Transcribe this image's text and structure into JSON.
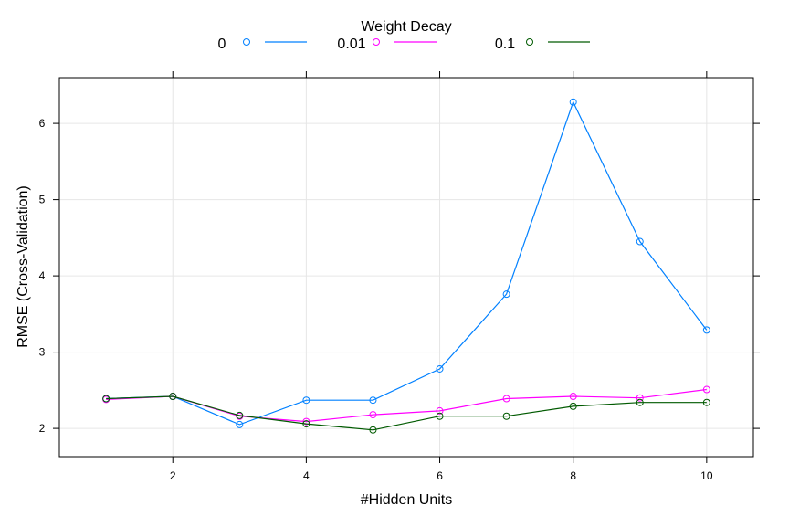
{
  "chart_data": {
    "type": "line",
    "legend": {
      "title": "Weight Decay",
      "placement": "top"
    },
    "xlabel": "#Hidden Units",
    "ylabel": "RMSE (Cross-Validation)",
    "xlim": [
      0.3,
      10.7
    ],
    "ylim": [
      1.63,
      6.6
    ],
    "xticks": [
      2,
      4,
      6,
      8,
      10
    ],
    "yticks": [
      2,
      3,
      4,
      5,
      6
    ],
    "grid": true,
    "x": [
      1,
      2,
      3,
      4,
      5,
      6,
      7,
      8,
      9,
      10
    ],
    "series": [
      {
        "name": "0",
        "color": "#0080ff",
        "values": [
          2.39,
          2.42,
          2.05,
          2.37,
          2.37,
          2.78,
          3.76,
          6.28,
          4.45,
          3.29
        ]
      },
      {
        "name": "0.01",
        "color": "#ff00ff",
        "values": [
          2.38,
          2.42,
          2.16,
          2.09,
          2.18,
          2.23,
          2.39,
          2.42,
          2.4,
          2.51
        ]
      },
      {
        "name": "0.1",
        "color": "#005a00",
        "values": [
          2.39,
          2.42,
          2.17,
          2.06,
          1.98,
          2.16,
          2.16,
          2.29,
          2.34,
          2.34
        ]
      }
    ]
  }
}
